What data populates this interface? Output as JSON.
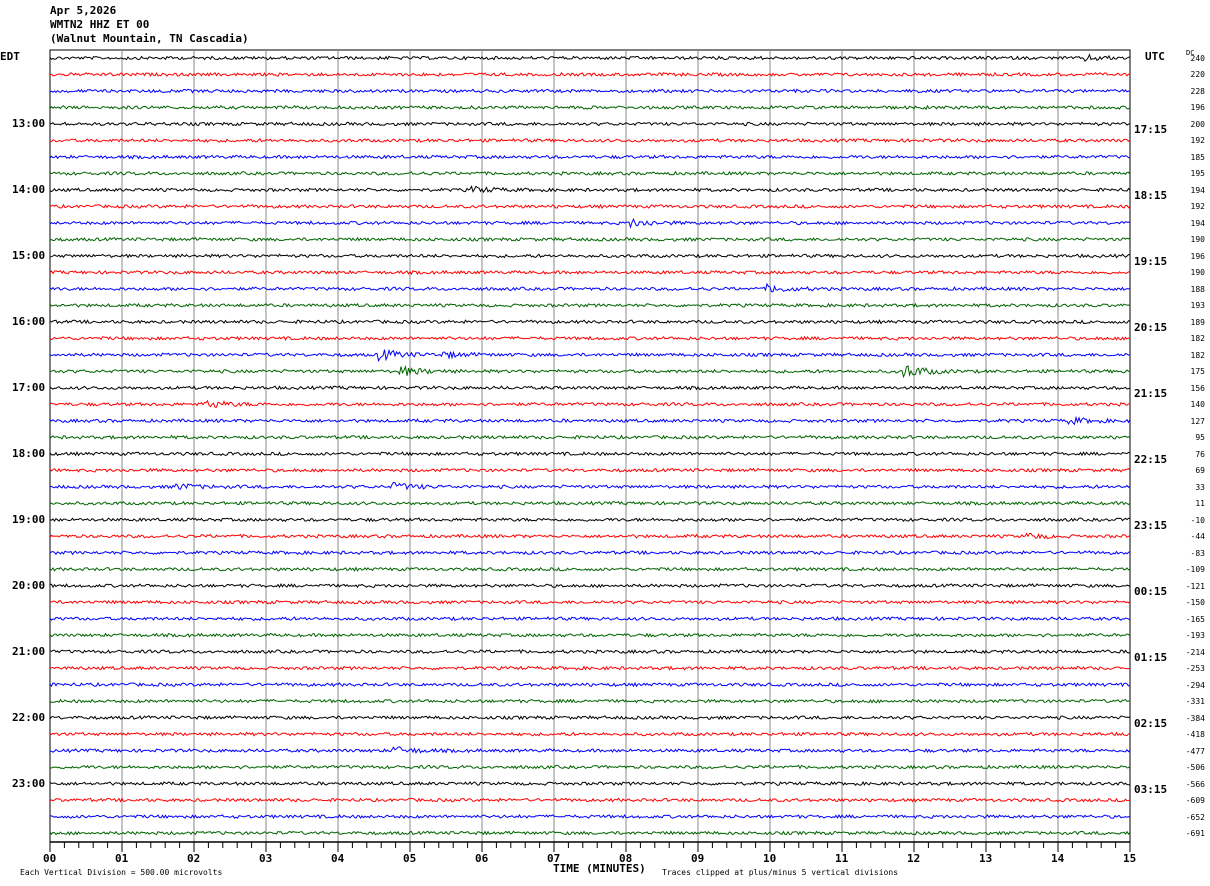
{
  "header": {
    "date": "Apr 5,2026",
    "station": "WMTN2 HHZ ET 00",
    "location": "(Walnut Mountain, TN Cascadia)"
  },
  "chart_data": {
    "type": "line",
    "title": "WMTN2 HHZ ET 00 helicorder",
    "xlabel": "TIME (MINUTES)",
    "xlim": [
      0,
      15
    ],
    "x_ticks": [
      "00",
      "01",
      "02",
      "03",
      "04",
      "05",
      "06",
      "07",
      "08",
      "09",
      "10",
      "11",
      "12",
      "13",
      "14",
      "15"
    ],
    "left_axis_title": "EDT",
    "right_axis_title": "UTC",
    "dc_title": "DC",
    "trace_colors": [
      "#000000",
      "#ff0000",
      "#0000ff",
      "#006400"
    ],
    "left_labels": [
      {
        "row": 4,
        "text": "13:00"
      },
      {
        "row": 8,
        "text": "14:00"
      },
      {
        "row": 12,
        "text": "15:00"
      },
      {
        "row": 16,
        "text": "16:00"
      },
      {
        "row": 20,
        "text": "17:00"
      },
      {
        "row": 24,
        "text": "18:00"
      },
      {
        "row": 28,
        "text": "19:00"
      },
      {
        "row": 32,
        "text": "20:00"
      },
      {
        "row": 36,
        "text": "21:00"
      },
      {
        "row": 40,
        "text": "22:00"
      },
      {
        "row": 44,
        "text": "23:00"
      }
    ],
    "right_labels": [
      {
        "row": 4,
        "text": "17:15"
      },
      {
        "row": 8,
        "text": "18:15"
      },
      {
        "row": 12,
        "text": "19:15"
      },
      {
        "row": 16,
        "text": "20:15"
      },
      {
        "row": 20,
        "text": "21:15"
      },
      {
        "row": 24,
        "text": "22:15"
      },
      {
        "row": 28,
        "text": "23:15"
      },
      {
        "row": 32,
        "text": "00:15"
      },
      {
        "row": 36,
        "text": "01:15"
      },
      {
        "row": 40,
        "text": "02:15"
      },
      {
        "row": 44,
        "text": "03:15"
      }
    ],
    "dc_offsets": [
      "240",
      "220",
      "228",
      "196",
      "200",
      "192",
      "185",
      "195",
      "194",
      "192",
      "194",
      "190",
      "196",
      "190",
      "188",
      "193",
      "189",
      "182",
      "182",
      "175",
      "156",
      "140",
      "127",
      "95",
      "76",
      "69",
      "33",
      "11",
      "-10",
      "-44",
      "-83",
      "-109",
      "-121",
      "-150",
      "-165",
      "-193",
      "-214",
      "-253",
      "-294",
      "-331",
      "-384",
      "-418",
      "-477",
      "-506",
      "-566",
      "-609",
      "-652",
      "-691"
    ],
    "events": [
      {
        "row": 10,
        "minute": 8.1,
        "amp": 4
      },
      {
        "row": 14,
        "minute": 10.0,
        "amp": 4
      },
      {
        "row": 18,
        "minute": 4.6,
        "amp": 6
      },
      {
        "row": 18,
        "minute": 5.5,
        "amp": 3
      },
      {
        "row": 19,
        "minute": 4.9,
        "amp": 5
      },
      {
        "row": 19,
        "minute": 11.9,
        "amp": 7
      },
      {
        "row": 21,
        "minute": 2.2,
        "amp": 4
      },
      {
        "row": 22,
        "minute": 14.2,
        "amp": 3
      },
      {
        "row": 26,
        "minute": 1.8,
        "amp": 3
      },
      {
        "row": 26,
        "minute": 4.8,
        "amp": 4
      },
      {
        "row": 29,
        "minute": 13.6,
        "amp": 3
      },
      {
        "row": 42,
        "minute": 4.8,
        "amp": 4
      },
      {
        "row": 8,
        "minute": 5.9,
        "amp": 3
      },
      {
        "row": 0,
        "minute": 14.4,
        "amp": 3
      }
    ],
    "footer_left": "Each Vertical Division =  500.00 microvolts",
    "footer_right": "Traces clipped at plus/minus 5 vertical divisions"
  }
}
